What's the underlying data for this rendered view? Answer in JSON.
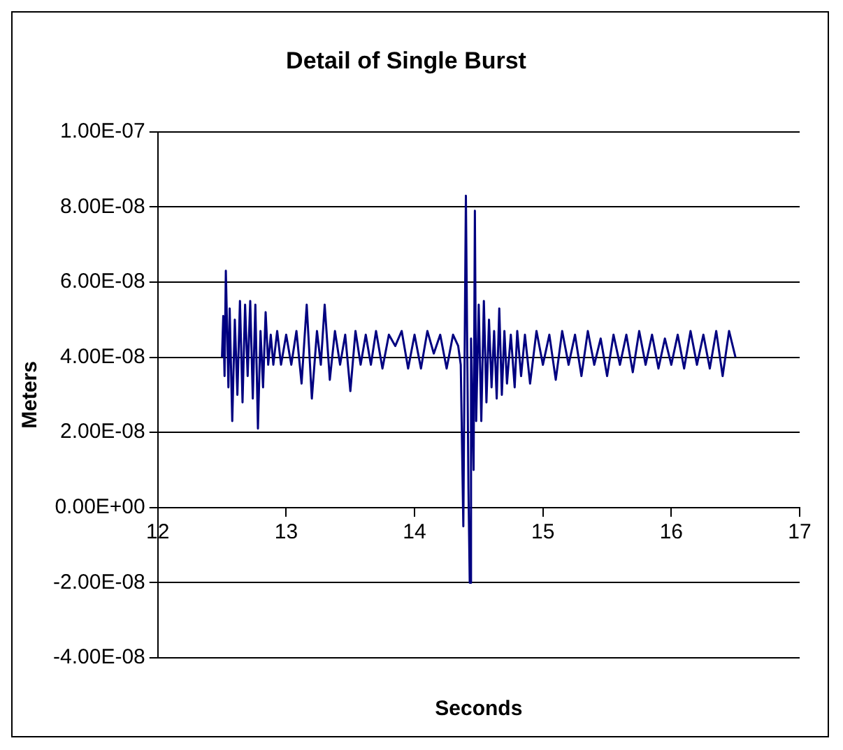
{
  "chart_data": {
    "type": "line",
    "title": "Detail of Single Burst",
    "xlabel": "Seconds",
    "ylabel": "Meters",
    "xlim": [
      12,
      17
    ],
    "xticks": [
      12,
      13,
      14,
      15,
      16,
      17
    ],
    "ylim": [
      -4e-08,
      1e-07
    ],
    "yticks": [
      {
        "value": -4e-08,
        "label": "-4.00E-08"
      },
      {
        "value": -2e-08,
        "label": "-2.00E-08"
      },
      {
        "value": 0,
        "label": "0.00E+00"
      },
      {
        "value": 2e-08,
        "label": "2.00E-08"
      },
      {
        "value": 4e-08,
        "label": "4.00E-08"
      },
      {
        "value": 6e-08,
        "label": "6.00E-08"
      },
      {
        "value": 8e-08,
        "label": "8.00E-08"
      },
      {
        "value": 1e-07,
        "label": "1.00E-07"
      }
    ],
    "grid": "y",
    "marker": "none",
    "line_style": "solid",
    "series": [
      {
        "color": "#000080",
        "x": [
          12.5,
          12.51,
          12.52,
          12.53,
          12.55,
          12.56,
          12.58,
          12.6,
          12.62,
          12.64,
          12.66,
          12.68,
          12.7,
          12.72,
          12.74,
          12.76,
          12.78,
          12.8,
          12.82,
          12.84,
          12.86,
          12.88,
          12.9,
          12.93,
          12.96,
          13.0,
          13.04,
          13.08,
          13.12,
          13.16,
          13.2,
          13.24,
          13.27,
          13.3,
          13.34,
          13.38,
          13.42,
          13.46,
          13.5,
          13.54,
          13.58,
          13.62,
          13.66,
          13.7,
          13.75,
          13.8,
          13.85,
          13.9,
          13.95,
          14.0,
          14.05,
          14.1,
          14.15,
          14.2,
          14.25,
          14.3,
          14.34,
          14.36,
          14.38,
          14.39,
          14.4,
          14.42,
          14.43,
          14.44,
          14.46,
          14.47,
          14.48,
          14.5,
          14.52,
          14.54,
          14.56,
          14.58,
          14.6,
          14.62,
          14.64,
          14.66,
          14.68,
          14.7,
          14.72,
          14.75,
          14.78,
          14.8,
          14.83,
          14.86,
          14.9,
          14.95,
          15.0,
          15.05,
          15.1,
          15.15,
          15.2,
          15.25,
          15.3,
          15.35,
          15.4,
          15.45,
          15.5,
          15.55,
          15.6,
          15.65,
          15.7,
          15.75,
          15.8,
          15.85,
          15.9,
          15.95,
          16.0,
          16.05,
          16.1,
          16.15,
          16.2,
          16.25,
          16.3,
          16.35,
          16.4,
          16.45,
          16.5
        ],
        "values": [
          4e-08,
          5.1e-08,
          3.5e-08,
          6.3e-08,
          3.2e-08,
          5.3e-08,
          2.3e-08,
          5e-08,
          3e-08,
          5.5e-08,
          2.8e-08,
          5.4e-08,
          3.5e-08,
          5.5e-08,
          2.9e-08,
          5.4e-08,
          2.1e-08,
          4.7e-08,
          3.2e-08,
          5.2e-08,
          3.8e-08,
          4.6e-08,
          3.8e-08,
          4.7e-08,
          3.8e-08,
          4.6e-08,
          3.8e-08,
          4.7e-08,
          3.3e-08,
          5.4e-08,
          2.9e-08,
          4.7e-08,
          3.8e-08,
          5.4e-08,
          3.4e-08,
          4.7e-08,
          3.8e-08,
          4.6e-08,
          3.1e-08,
          4.7e-08,
          3.8e-08,
          4.6e-08,
          3.8e-08,
          4.7e-08,
          3.7e-08,
          4.6e-08,
          4.3e-08,
          4.7e-08,
          3.7e-08,
          4.6e-08,
          3.7e-08,
          4.7e-08,
          4.1e-08,
          4.6e-08,
          3.7e-08,
          4.6e-08,
          4.3e-08,
          3.8e-08,
          -5e-09,
          4e-08,
          8.3e-08,
          5e-09,
          -2e-08,
          4.5e-08,
          1e-08,
          7.9e-08,
          2.3e-08,
          5.4e-08,
          2.3e-08,
          5.5e-08,
          2.8e-08,
          5e-08,
          3.2e-08,
          4.7e-08,
          2.9e-08,
          5.3e-08,
          3e-08,
          4.7e-08,
          3.3e-08,
          4.6e-08,
          3.2e-08,
          4.7e-08,
          3.5e-08,
          4.6e-08,
          3.3e-08,
          4.7e-08,
          3.8e-08,
          4.6e-08,
          3.4e-08,
          4.7e-08,
          3.8e-08,
          4.6e-08,
          3.5e-08,
          4.7e-08,
          3.8e-08,
          4.5e-08,
          3.5e-08,
          4.6e-08,
          3.8e-08,
          4.6e-08,
          3.6e-08,
          4.7e-08,
          3.8e-08,
          4.6e-08,
          3.7e-08,
          4.5e-08,
          3.8e-08,
          4.6e-08,
          3.7e-08,
          4.7e-08,
          3.8e-08,
          4.6e-08,
          3.7e-08,
          4.7e-08,
          3.5e-08,
          4.7e-08,
          4e-08
        ]
      }
    ]
  }
}
